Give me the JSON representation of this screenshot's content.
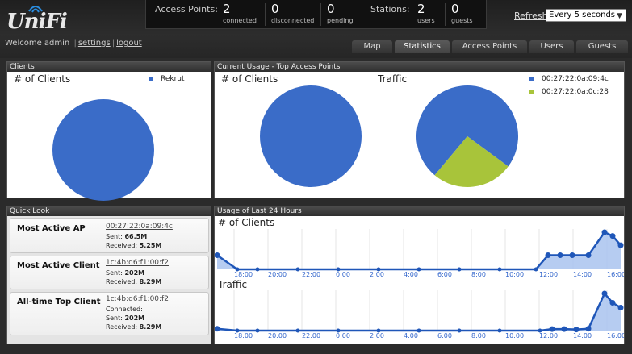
{
  "app": {
    "logo_text": "UniFi"
  },
  "header": {
    "access_points_label": "Access Points:",
    "ap_connected": {
      "value": "2",
      "label": "connected"
    },
    "ap_disconnected": {
      "value": "0",
      "label": "disconnected"
    },
    "ap_pending": {
      "value": "0",
      "label": "pending"
    },
    "stations_label": "Stations:",
    "st_users": {
      "value": "2",
      "label": "users"
    },
    "st_guests": {
      "value": "0",
      "label": "guests"
    },
    "refresh_link": "Refresh",
    "refresh_interval": "Every 5 seconds"
  },
  "welcome": {
    "text": "Welcome admin",
    "settings": "settings",
    "logout": "logout"
  },
  "tabs": [
    {
      "label": "Map"
    },
    {
      "label": "Statistics",
      "active": true
    },
    {
      "label": "Access Points"
    },
    {
      "label": "Users"
    },
    {
      "label": "Guests"
    }
  ],
  "panels": {
    "clients": {
      "title": "Clients",
      "chart_label": "# of Clients",
      "legend": [
        "Rekrut"
      ]
    },
    "current_usage": {
      "title": "Current Usage - Top Access Points",
      "clients_label": "# of Clients",
      "traffic_label": "Traffic",
      "legend": [
        "00:27:22:0a:09:4c",
        "00:27:22:0a:0c:28"
      ]
    },
    "quick_look": {
      "title": "Quick Look",
      "most_active_ap": {
        "title": "Most Active AP",
        "mac": "00:27:22:0a:09:4c",
        "sent_label": "Sent:",
        "sent": "66.5M",
        "received_label": "Received:",
        "received": "5.25M"
      },
      "most_active_client": {
        "title": "Most Active Client",
        "mac": "1c:4b:d6:f1:00:f2",
        "sent_label": "Sent:",
        "sent": "202M",
        "received_label": "Received:",
        "received": "8.29M"
      },
      "alltime_top_client": {
        "title": "All-time Top Client",
        "mac": "1c:4b:d6:f1:00:f2",
        "connected_label": "Connected:",
        "sent_label": "Sent:",
        "sent": "202M",
        "received_label": "Received:",
        "received": "8.29M"
      }
    },
    "usage24": {
      "title": "Usage of Last 24 Hours",
      "clients_label": "# of Clients",
      "traffic_label": "Traffic"
    }
  },
  "colors": {
    "blue": "#3a6cc8",
    "green": "#a8c43a",
    "line": "#1f56b8"
  },
  "chart_data": [
    {
      "type": "pie",
      "title": "# of Clients",
      "categories": [
        "Rekrut"
      ],
      "values": [
        1
      ]
    },
    {
      "type": "pie",
      "title": "# of Clients",
      "categories": [
        "00:27:22:0a:09:4c",
        "00:27:22:0a:0c:28"
      ],
      "values": [
        1,
        0
      ]
    },
    {
      "type": "pie",
      "title": "Traffic",
      "categories": [
        "00:27:22:0a:09:4c",
        "00:27:22:0a:0c:28"
      ],
      "values": [
        0.74,
        0.26
      ]
    },
    {
      "type": "area",
      "title": "# of Clients",
      "tick_labels": [
        "18:00",
        "20:00",
        "22:00",
        "0:00",
        "2:00",
        "4:00",
        "6:00",
        "8:00",
        "10:00",
        "12:00",
        "14:00",
        "16:00"
      ],
      "x": [
        0,
        0.05,
        0.1,
        0.2,
        0.3,
        0.4,
        0.5,
        0.6,
        0.7,
        0.79,
        0.82,
        0.85,
        0.88,
        0.92,
        0.96,
        0.98,
        1.0
      ],
      "y": [
        0.38,
        0,
        0,
        0,
        0,
        0,
        0,
        0,
        0,
        0,
        0.38,
        0.38,
        0.38,
        0.38,
        1.0,
        0.9,
        0.65
      ]
    },
    {
      "type": "area",
      "title": "Traffic",
      "tick_labels": [
        "18:00",
        "20:00",
        "22:00",
        "0:00",
        "2:00",
        "4:00",
        "6:00",
        "8:00",
        "10:00",
        "12:00",
        "14:00",
        "16:00"
      ],
      "x": [
        0,
        0.05,
        0.1,
        0.2,
        0.3,
        0.4,
        0.5,
        0.6,
        0.7,
        0.8,
        0.83,
        0.86,
        0.89,
        0.92,
        0.96,
        0.98,
        1.0
      ],
      "y": [
        0.05,
        0,
        0,
        0,
        0,
        0,
        0,
        0,
        0,
        0,
        0.04,
        0.04,
        0.03,
        0.05,
        1.0,
        0.75,
        0.62
      ]
    }
  ]
}
